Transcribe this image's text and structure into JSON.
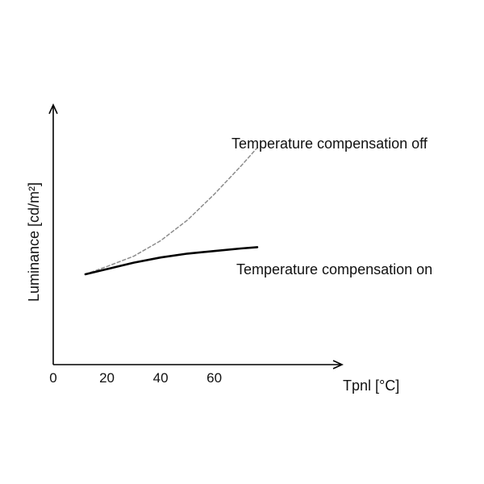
{
  "chart_data": {
    "type": "line",
    "xlabel": "Tpnl [°C]",
    "ylabel": "Luminance [cd/m²]",
    "x_ticks": [
      0,
      20,
      40,
      60
    ],
    "xlim": [
      0,
      107
    ],
    "ylim": [
      0,
      1
    ],
    "y_ticks_shown": false,
    "grid": false,
    "series": [
      {
        "name": "Temperature compensation off",
        "color": "#8c8c8c",
        "dash": true,
        "x": [
          12,
          20,
          30,
          40,
          50,
          60,
          70,
          76
        ],
        "y": [
          0.35,
          0.38,
          0.42,
          0.48,
          0.56,
          0.66,
          0.77,
          0.84
        ]
      },
      {
        "name": "Temperature compensation on",
        "color": "#000000",
        "dash": false,
        "x": [
          12,
          20,
          30,
          40,
          50,
          60,
          70,
          76
        ],
        "y": [
          0.35,
          0.37,
          0.395,
          0.415,
          0.43,
          0.44,
          0.45,
          0.455
        ]
      }
    ],
    "annotations": [
      "Temperature compensation off",
      "Temperature compensation on"
    ]
  }
}
